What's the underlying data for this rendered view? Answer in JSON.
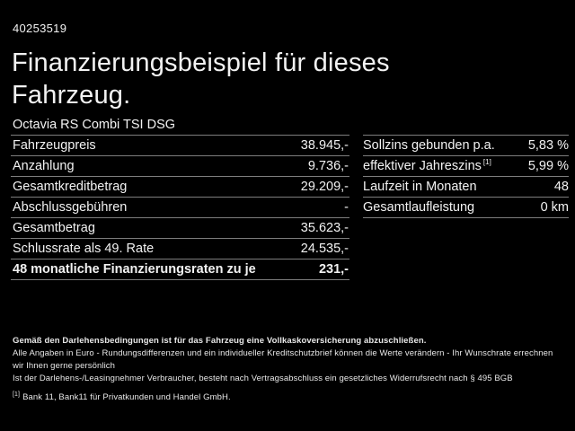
{
  "page": {
    "id_number": "40253519",
    "title_line1": "Finanzierungsbeispiel für dieses",
    "title_line2": "Fahrzeug.",
    "vehicle": "Octavia RS Combi TSI DSG"
  },
  "left_table": {
    "rows": [
      {
        "label": "Fahrzeugpreis",
        "value": "38.945,-"
      },
      {
        "label": "Anzahlung",
        "value": "9.736,-"
      },
      {
        "label": "Gesamtkreditbetrag",
        "value": "29.209,-"
      },
      {
        "label": "Abschlussgebühren",
        "value": "-"
      },
      {
        "label": "Gesamtbetrag",
        "value": "35.623,-"
      },
      {
        "label": "Schlussrate als 49. Rate",
        "value": "24.535,-"
      },
      {
        "label": "48 monatliche Finanzierungsraten zu je",
        "value": "231,-",
        "emphasis": true
      }
    ]
  },
  "right_table": {
    "rows": [
      {
        "label": "Sollzins gebunden p.a.",
        "value": "5,83 %"
      },
      {
        "label": "effektiver Jahreszins",
        "sup": "[1]",
        "value": "5,99 %"
      },
      {
        "label": "Laufzeit in Monaten",
        "value": "48"
      },
      {
        "label": "Gesamtlaufleistung",
        "value": "0 km"
      }
    ]
  },
  "footer": {
    "line_bold": "Gemäß den Darlehensbedingungen ist für das Fahrzeug eine Vollkaskoversicherung abzuschließen.",
    "line2": "Alle Angaben in Euro - Rundungsdifferenzen und ein individueller Kreditschutzbrief können die Werte verändern - Ihr Wunschrate errechnen wir Ihnen gerne persönlich",
    "line3": "Ist der Darlehens-/Leasingnehmer Verbraucher, besteht nach Vertragsabschluss ein gesetzliches Widerrufsrecht nach § 495 BGB",
    "footnote_marker": "[1]",
    "footnote": "Bank 11, Bank11 für Privatkunden und Handel GmbH."
  },
  "colors": {
    "background": "#000000",
    "text": "#f2f2f2",
    "divider": "#7d7d7d"
  }
}
